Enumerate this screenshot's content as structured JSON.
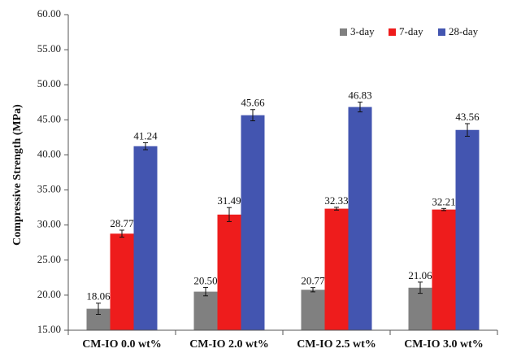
{
  "chart_data": {
    "type": "bar",
    "title": "",
    "xlabel": "",
    "ylabel": "Compressive Strength (MPa)",
    "ylim": [
      15,
      60
    ],
    "yticks": [
      15,
      20,
      25,
      30,
      35,
      40,
      45,
      50,
      55,
      60
    ],
    "ytick_labels": [
      "15.00",
      "20.00",
      "25.00",
      "30.00",
      "35.00",
      "40.00",
      "45.00",
      "50.00",
      "55.00",
      "60.00"
    ],
    "categories": [
      "CM-IO 0.0 wt%",
      "CM-IO 2.0 wt%",
      "CM-IO 2.5 wt%",
      "CM-IO 3.0 wt%"
    ],
    "series": [
      {
        "name": "3-day",
        "color": "#808080",
        "values": [
          18.06,
          20.5,
          20.77,
          21.06
        ],
        "labels": [
          "18.06",
          "20.50",
          "20.77",
          "21.06"
        ],
        "errors": [
          0.8,
          0.6,
          0.3,
          0.8
        ]
      },
      {
        "name": "7-day",
        "color": "#ee1c1c",
        "values": [
          28.77,
          31.49,
          32.33,
          32.21
        ],
        "labels": [
          "28.77",
          "31.49",
          "32.33",
          "32.21"
        ],
        "errors": [
          0.5,
          1.0,
          0.2,
          0.15
        ]
      },
      {
        "name": "28-day",
        "color": "#4355b0",
        "values": [
          41.24,
          45.66,
          46.83,
          43.56
        ],
        "labels": [
          "41.24",
          "45.66",
          "46.83",
          "43.56"
        ],
        "errors": [
          0.5,
          0.8,
          0.7,
          0.9
        ]
      }
    ],
    "legend_position": "top-right",
    "grid": false
  }
}
